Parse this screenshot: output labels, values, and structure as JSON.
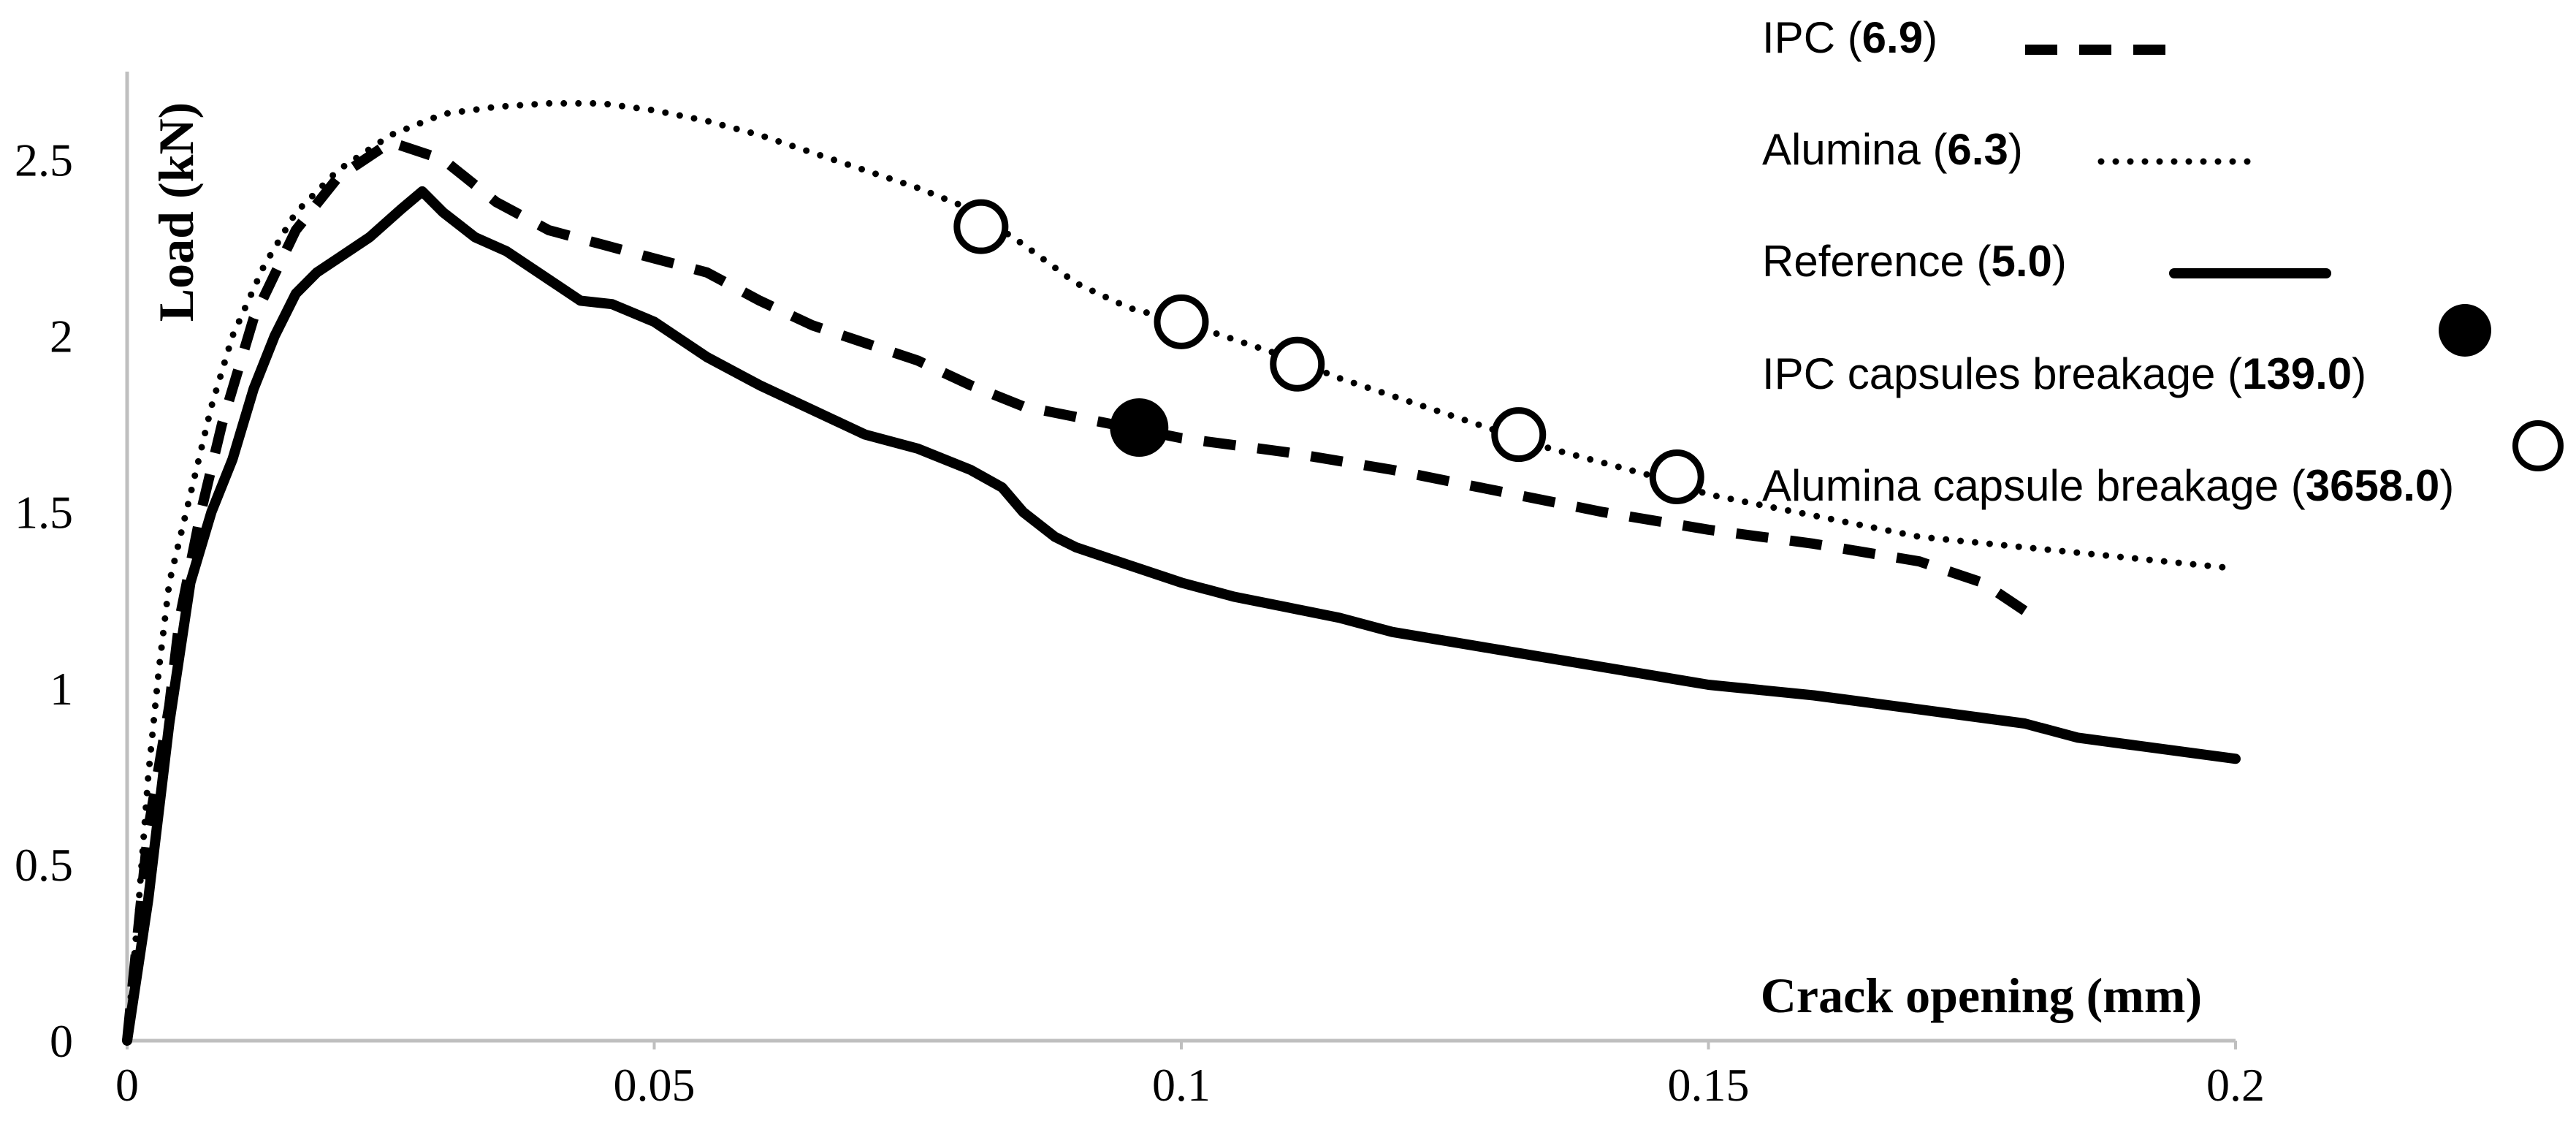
{
  "chart_data": {
    "type": "line",
    "title": "",
    "xlabel": "Crack opening (mm)",
    "ylabel": "Load (kN)",
    "xlim": [
      0,
      0.2
    ],
    "ylim": [
      0,
      2.75
    ],
    "x_ticks": [
      0,
      0.05,
      0.1,
      0.15,
      0.2
    ],
    "x_tick_labels": [
      "0",
      "0.05",
      "0.1",
      "0.15",
      "0.2"
    ],
    "y_ticks": [
      0,
      0.5,
      1,
      1.5,
      2,
      2.5
    ],
    "y_tick_labels": [
      "0",
      "0.5",
      "1",
      "1.5",
      "2",
      "2.5"
    ],
    "grid": false,
    "legend_position": "top-right",
    "series": [
      {
        "key": "ipc",
        "name": "IPC",
        "value": "6.9",
        "style": "dashed",
        "color": "#000000",
        "points": [
          [
            0,
            0
          ],
          [
            0.001,
            0.3
          ],
          [
            0.002,
            0.6
          ],
          [
            0.004,
            0.95
          ],
          [
            0.005,
            1.2
          ],
          [
            0.007,
            1.5
          ],
          [
            0.009,
            1.75
          ],
          [
            0.012,
            2.05
          ],
          [
            0.016,
            2.3
          ],
          [
            0.02,
            2.45
          ],
          [
            0.025,
            2.55
          ],
          [
            0.03,
            2.5
          ],
          [
            0.035,
            2.38
          ],
          [
            0.04,
            2.3
          ],
          [
            0.045,
            2.26
          ],
          [
            0.05,
            2.22
          ],
          [
            0.055,
            2.18
          ],
          [
            0.06,
            2.1
          ],
          [
            0.065,
            2.03
          ],
          [
            0.07,
            1.98
          ],
          [
            0.075,
            1.93
          ],
          [
            0.08,
            1.86
          ],
          [
            0.085,
            1.8
          ],
          [
            0.09,
            1.77
          ],
          [
            0.095,
            1.74
          ],
          [
            0.1,
            1.71
          ],
          [
            0.105,
            1.69
          ],
          [
            0.11,
            1.67
          ],
          [
            0.12,
            1.62
          ],
          [
            0.13,
            1.56
          ],
          [
            0.14,
            1.5
          ],
          [
            0.15,
            1.45
          ],
          [
            0.16,
            1.41
          ],
          [
            0.17,
            1.36
          ],
          [
            0.176,
            1.3
          ],
          [
            0.18,
            1.22
          ],
          [
            0.182,
            1.21
          ]
        ]
      },
      {
        "key": "alumina",
        "name": "Alumina",
        "value": "6.3",
        "style": "dotted",
        "color": "#000000",
        "points": [
          [
            0,
            0
          ],
          [
            0.001,
            0.35
          ],
          [
            0.002,
            0.75
          ],
          [
            0.003,
            1.05
          ],
          [
            0.004,
            1.3
          ],
          [
            0.006,
            1.55
          ],
          [
            0.008,
            1.8
          ],
          [
            0.01,
            2.0
          ],
          [
            0.013,
            2.2
          ],
          [
            0.016,
            2.35
          ],
          [
            0.02,
            2.47
          ],
          [
            0.025,
            2.57
          ],
          [
            0.03,
            2.63
          ],
          [
            0.035,
            2.65
          ],
          [
            0.04,
            2.66
          ],
          [
            0.045,
            2.66
          ],
          [
            0.05,
            2.64
          ],
          [
            0.055,
            2.61
          ],
          [
            0.06,
            2.57
          ],
          [
            0.065,
            2.52
          ],
          [
            0.07,
            2.47
          ],
          [
            0.075,
            2.42
          ],
          [
            0.08,
            2.36
          ],
          [
            0.085,
            2.26
          ],
          [
            0.09,
            2.15
          ],
          [
            0.095,
            2.08
          ],
          [
            0.1,
            2.04
          ],
          [
            0.105,
            1.99
          ],
          [
            0.11,
            1.94
          ],
          [
            0.115,
            1.88
          ],
          [
            0.12,
            1.83
          ],
          [
            0.125,
            1.78
          ],
          [
            0.13,
            1.73
          ],
          [
            0.135,
            1.68
          ],
          [
            0.14,
            1.64
          ],
          [
            0.145,
            1.6
          ],
          [
            0.15,
            1.55
          ],
          [
            0.155,
            1.52
          ],
          [
            0.16,
            1.49
          ],
          [
            0.165,
            1.46
          ],
          [
            0.17,
            1.43
          ],
          [
            0.18,
            1.4
          ],
          [
            0.19,
            1.37
          ],
          [
            0.2,
            1.34
          ]
        ]
      },
      {
        "key": "reference",
        "name": "Reference",
        "value": "5.0",
        "style": "solid",
        "color": "#000000",
        "points": [
          [
            0,
            0
          ],
          [
            0.002,
            0.4
          ],
          [
            0.004,
            0.9
          ],
          [
            0.006,
            1.3
          ],
          [
            0.008,
            1.5
          ],
          [
            0.01,
            1.65
          ],
          [
            0.012,
            1.85
          ],
          [
            0.014,
            2.0
          ],
          [
            0.016,
            2.12
          ],
          [
            0.018,
            2.18
          ],
          [
            0.02,
            2.22
          ],
          [
            0.023,
            2.28
          ],
          [
            0.026,
            2.36
          ],
          [
            0.028,
            2.41
          ],
          [
            0.03,
            2.35
          ],
          [
            0.033,
            2.28
          ],
          [
            0.036,
            2.24
          ],
          [
            0.04,
            2.16
          ],
          [
            0.043,
            2.1
          ],
          [
            0.046,
            2.09
          ],
          [
            0.05,
            2.04
          ],
          [
            0.055,
            1.94
          ],
          [
            0.06,
            1.86
          ],
          [
            0.065,
            1.79
          ],
          [
            0.07,
            1.72
          ],
          [
            0.075,
            1.68
          ],
          [
            0.08,
            1.62
          ],
          [
            0.083,
            1.57
          ],
          [
            0.085,
            1.5
          ],
          [
            0.088,
            1.43
          ],
          [
            0.09,
            1.4
          ],
          [
            0.095,
            1.35
          ],
          [
            0.1,
            1.3
          ],
          [
            0.105,
            1.26
          ],
          [
            0.11,
            1.23
          ],
          [
            0.115,
            1.2
          ],
          [
            0.12,
            1.16
          ],
          [
            0.13,
            1.11
          ],
          [
            0.14,
            1.06
          ],
          [
            0.15,
            1.01
          ],
          [
            0.16,
            0.98
          ],
          [
            0.17,
            0.94
          ],
          [
            0.18,
            0.9
          ],
          [
            0.185,
            0.86
          ],
          [
            0.19,
            0.84
          ],
          [
            0.2,
            0.8
          ]
        ]
      }
    ],
    "markers": [
      {
        "key": "ipc_break",
        "name": "IPC capsules breakage",
        "value": "139.0",
        "fill": "filled",
        "points": [
          [
            0.096,
            1.74
          ]
        ]
      },
      {
        "key": "alumina_break",
        "name": "Alumina capsule breakage",
        "value": "3658.0",
        "fill": "open",
        "points": [
          [
            0.081,
            2.31
          ],
          [
            0.1,
            2.04
          ],
          [
            0.111,
            1.92
          ],
          [
            0.132,
            1.72
          ],
          [
            0.147,
            1.6
          ]
        ]
      }
    ]
  }
}
